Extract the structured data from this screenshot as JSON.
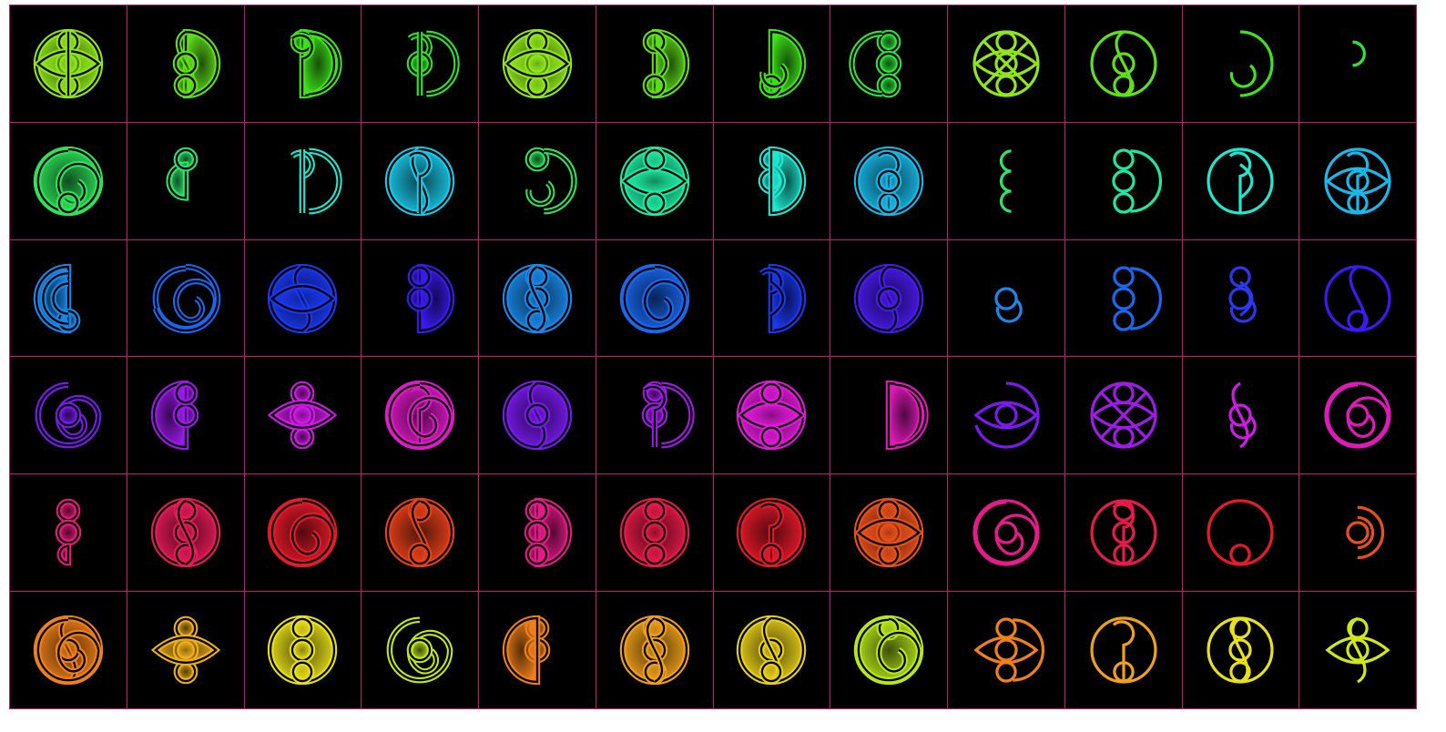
{
  "grid": {
    "rows": 6,
    "cols": 12,
    "border_color": "#c8157a",
    "background": "#000000"
  },
  "glyphs": [
    {
      "c": "#8fe61c",
      "style": "fill",
      "parts": [
        "disc",
        "top",
        "mid",
        "bot",
        "lens",
        "vline"
      ]
    },
    {
      "c": "#5ee01a",
      "style": "fill",
      "parts": [
        "half-r",
        "s",
        "mid",
        "bot"
      ]
    },
    {
      "c": "#3ee31a",
      "style": "fill",
      "parts": [
        "half-r",
        "top",
        "hook",
        "arc"
      ]
    },
    {
      "c": "#2ee32a",
      "style": "fill",
      "parts": [
        "hook",
        "mid",
        "arc",
        "vline"
      ]
    },
    {
      "c": "#8fe61c",
      "style": "fill",
      "parts": [
        "disc",
        "top",
        "mid",
        "bot",
        "lens"
      ]
    },
    {
      "c": "#5ee01a",
      "style": "fill",
      "parts": [
        "half-r",
        "top",
        "lens-r",
        "bot"
      ]
    },
    {
      "c": "#3ee31a",
      "style": "fill",
      "parts": [
        "half-r",
        "bot",
        "hook-low"
      ]
    },
    {
      "c": "#2ee33a",
      "style": "fill",
      "parts": [
        "top",
        "mid",
        "bot",
        "arc-l"
      ]
    },
    {
      "c": "#8fe61c",
      "style": "line",
      "parts": [
        "disc",
        "top",
        "mid",
        "bot",
        "lens",
        "cross"
      ]
    },
    {
      "c": "#5ee01a",
      "style": "line",
      "parts": [
        "disc",
        "s",
        "bot",
        "mid"
      ]
    },
    {
      "c": "#3ee31a",
      "style": "line",
      "parts": [
        "arc-r",
        "hook-low"
      ]
    },
    {
      "c": "#2ee33a",
      "style": "line",
      "parts": [
        "small-hook"
      ]
    },
    {
      "c": "#2ee35a",
      "style": "fill",
      "parts": [
        "disc",
        "spiral",
        "bot"
      ]
    },
    {
      "c": "#2ee36a",
      "style": "fill",
      "parts": [
        "small-half",
        "top"
      ]
    },
    {
      "c": "#1ee8d0",
      "style": "fill",
      "parts": [
        "hook",
        "arc",
        "vline"
      ]
    },
    {
      "c": "#1ac8e8",
      "style": "fill",
      "parts": [
        "disc",
        "s",
        "hook"
      ]
    },
    {
      "c": "#2ee35a",
      "style": "fill",
      "parts": [
        "top",
        "hook-low",
        "arc"
      ]
    },
    {
      "c": "#1ee8a0",
      "style": "fill",
      "parts": [
        "disc",
        "lens",
        "bot",
        "top"
      ]
    },
    {
      "c": "#1ee8d0",
      "style": "fill",
      "parts": [
        "top",
        "mid",
        "lens-r",
        "half-r"
      ]
    },
    {
      "c": "#1ab8e8",
      "style": "fill",
      "parts": [
        "disc",
        "hook",
        "bot",
        "mid"
      ]
    },
    {
      "c": "#2ee36a",
      "style": "line",
      "parts": [
        "chain-l"
      ]
    },
    {
      "c": "#1ee8a0",
      "style": "line",
      "parts": [
        "top",
        "mid",
        "bot",
        "arc"
      ]
    },
    {
      "c": "#1ee8d0",
      "style": "line",
      "parts": [
        "disc",
        "hook",
        "lens-r"
      ]
    },
    {
      "c": "#1ab8e8",
      "style": "line",
      "parts": [
        "disc",
        "hook",
        "mid",
        "bot",
        "lens"
      ]
    },
    {
      "c": "#1a88e8",
      "style": "fill",
      "parts": [
        "half-l",
        "bot",
        "arcs-l"
      ]
    },
    {
      "c": "#1a68f0",
      "style": "fill",
      "parts": [
        "spiral",
        "disc-open"
      ]
    },
    {
      "c": "#1a38f0",
      "style": "fill",
      "parts": [
        "disc",
        "s",
        "lens"
      ]
    },
    {
      "c": "#3a1af0",
      "style": "fill",
      "parts": [
        "half-r",
        "mid",
        "top"
      ]
    },
    {
      "c": "#1a88e8",
      "style": "fill",
      "parts": [
        "disc",
        "top",
        "mid",
        "bot",
        "s"
      ]
    },
    {
      "c": "#1a68f0",
      "style": "fill",
      "parts": [
        "disc",
        "spiral"
      ]
    },
    {
      "c": "#1a38f0",
      "style": "fill",
      "parts": [
        "half-r",
        "hook",
        "lens-r"
      ]
    },
    {
      "c": "#4a1af0",
      "style": "fill",
      "parts": [
        "disc",
        "s",
        "mid"
      ]
    },
    {
      "c": "#1a88e8",
      "style": "line",
      "parts": [
        "mid",
        "hook-low"
      ]
    },
    {
      "c": "#1a68f0",
      "style": "line",
      "parts": [
        "top",
        "mid",
        "bot",
        "arc"
      ]
    },
    {
      "c": "#2a38f0",
      "style": "line",
      "parts": [
        "top",
        "mid",
        "lens-r",
        "hook-low"
      ]
    },
    {
      "c": "#3a1af0",
      "style": "line",
      "parts": [
        "disc",
        "s",
        "bot"
      ]
    },
    {
      "c": "#7a1af0",
      "style": "fill",
      "parts": [
        "spiral",
        "mid"
      ]
    },
    {
      "c": "#9a1ae8",
      "style": "fill",
      "parts": [
        "half-l",
        "mid",
        "top"
      ]
    },
    {
      "c": "#d01ae8",
      "style": "fill",
      "parts": [
        "top",
        "mid",
        "bot",
        "lens"
      ]
    },
    {
      "c": "#e01ac8",
      "style": "fill",
      "parts": [
        "disc",
        "hook",
        "spiral"
      ]
    },
    {
      "c": "#7a1af0",
      "style": "fill",
      "parts": [
        "disc",
        "s",
        "mid"
      ]
    },
    {
      "c": "#a01ae8",
      "style": "fill",
      "parts": [
        "top",
        "mid",
        "hook",
        "arc"
      ]
    },
    {
      "c": "#e01ad8",
      "style": "fill",
      "parts": [
        "disc",
        "lens",
        "top",
        "bot"
      ]
    },
    {
      "c": "#e01ab8",
      "style": "fill",
      "parts": [
        "half-r",
        "arc"
      ]
    },
    {
      "c": "#7a1af0",
      "style": "line",
      "parts": [
        "disc-open",
        "mid",
        "lens"
      ]
    },
    {
      "c": "#a01ae8",
      "style": "line",
      "parts": [
        "disc",
        "lens",
        "top",
        "bot",
        "cross"
      ]
    },
    {
      "c": "#d01ae8",
      "style": "line",
      "parts": [
        "s",
        "mid",
        "hook-low"
      ]
    },
    {
      "c": "#e01ab8",
      "style": "line",
      "parts": [
        "disc",
        "spiral",
        "mid"
      ]
    },
    {
      "c": "#e81a7a",
      "style": "fill",
      "parts": [
        "top",
        "mid",
        "bot-half"
      ]
    },
    {
      "c": "#e81a5a",
      "style": "fill",
      "parts": [
        "disc",
        "top",
        "mid",
        "bot",
        "s"
      ]
    },
    {
      "c": "#e81a2a",
      "style": "fill",
      "parts": [
        "disc",
        "spiral"
      ]
    },
    {
      "c": "#e8401a",
      "style": "fill",
      "parts": [
        "disc",
        "top",
        "s",
        "bot"
      ]
    },
    {
      "c": "#e81a8a",
      "style": "fill",
      "parts": [
        "half-r",
        "top",
        "mid",
        "bot"
      ]
    },
    {
      "c": "#e81a4a",
      "style": "fill",
      "parts": [
        "disc",
        "top",
        "mid",
        "bot"
      ]
    },
    {
      "c": "#e81a2a",
      "style": "fill",
      "parts": [
        "disc",
        "hook",
        "bot"
      ]
    },
    {
      "c": "#e8501a",
      "style": "fill",
      "parts": [
        "disc",
        "top",
        "mid",
        "bot",
        "lens"
      ]
    },
    {
      "c": "#e81a8a",
      "style": "line",
      "parts": [
        "disc",
        "spiral",
        "mid"
      ]
    },
    {
      "c": "#e81a4a",
      "style": "line",
      "parts": [
        "disc",
        "top",
        "mid",
        "bot",
        "hook"
      ]
    },
    {
      "c": "#e81a2a",
      "style": "line",
      "parts": [
        "disc",
        "bot"
      ]
    },
    {
      "c": "#e8501a",
      "style": "line",
      "parts": [
        "arcs-r",
        "mid"
      ]
    },
    {
      "c": "#f0801a",
      "style": "fill",
      "parts": [
        "disc",
        "s",
        "mid",
        "spiral"
      ]
    },
    {
      "c": "#f0b01a",
      "style": "fill",
      "parts": [
        "top",
        "mid",
        "bot",
        "lens"
      ]
    },
    {
      "c": "#e8e01a",
      "style": "fill",
      "parts": [
        "disc",
        "top",
        "mid",
        "bot"
      ]
    },
    {
      "c": "#c0e81a",
      "style": "fill",
      "parts": [
        "spiral",
        "mid"
      ]
    },
    {
      "c": "#f0801a",
      "style": "fill",
      "parts": [
        "top",
        "mid",
        "half-l"
      ]
    },
    {
      "c": "#f0a01a",
      "style": "fill",
      "parts": [
        "disc",
        "top",
        "mid",
        "bot",
        "s"
      ]
    },
    {
      "c": "#e8d01a",
      "style": "fill",
      "parts": [
        "disc",
        "mid",
        "s",
        "bot"
      ]
    },
    {
      "c": "#b8e81a",
      "style": "fill",
      "parts": [
        "disc",
        "top",
        "spiral"
      ]
    },
    {
      "c": "#f0801a",
      "style": "line",
      "parts": [
        "top",
        "mid",
        "bot",
        "lens",
        "arc"
      ]
    },
    {
      "c": "#f0a01a",
      "style": "line",
      "parts": [
        "disc",
        "hook",
        "bot"
      ]
    },
    {
      "c": "#e8e01a",
      "style": "line",
      "parts": [
        "disc",
        "top",
        "mid",
        "bot",
        "s"
      ]
    },
    {
      "c": "#d0e81a",
      "style": "line",
      "parts": [
        "top",
        "mid",
        "s",
        "lens"
      ]
    }
  ]
}
